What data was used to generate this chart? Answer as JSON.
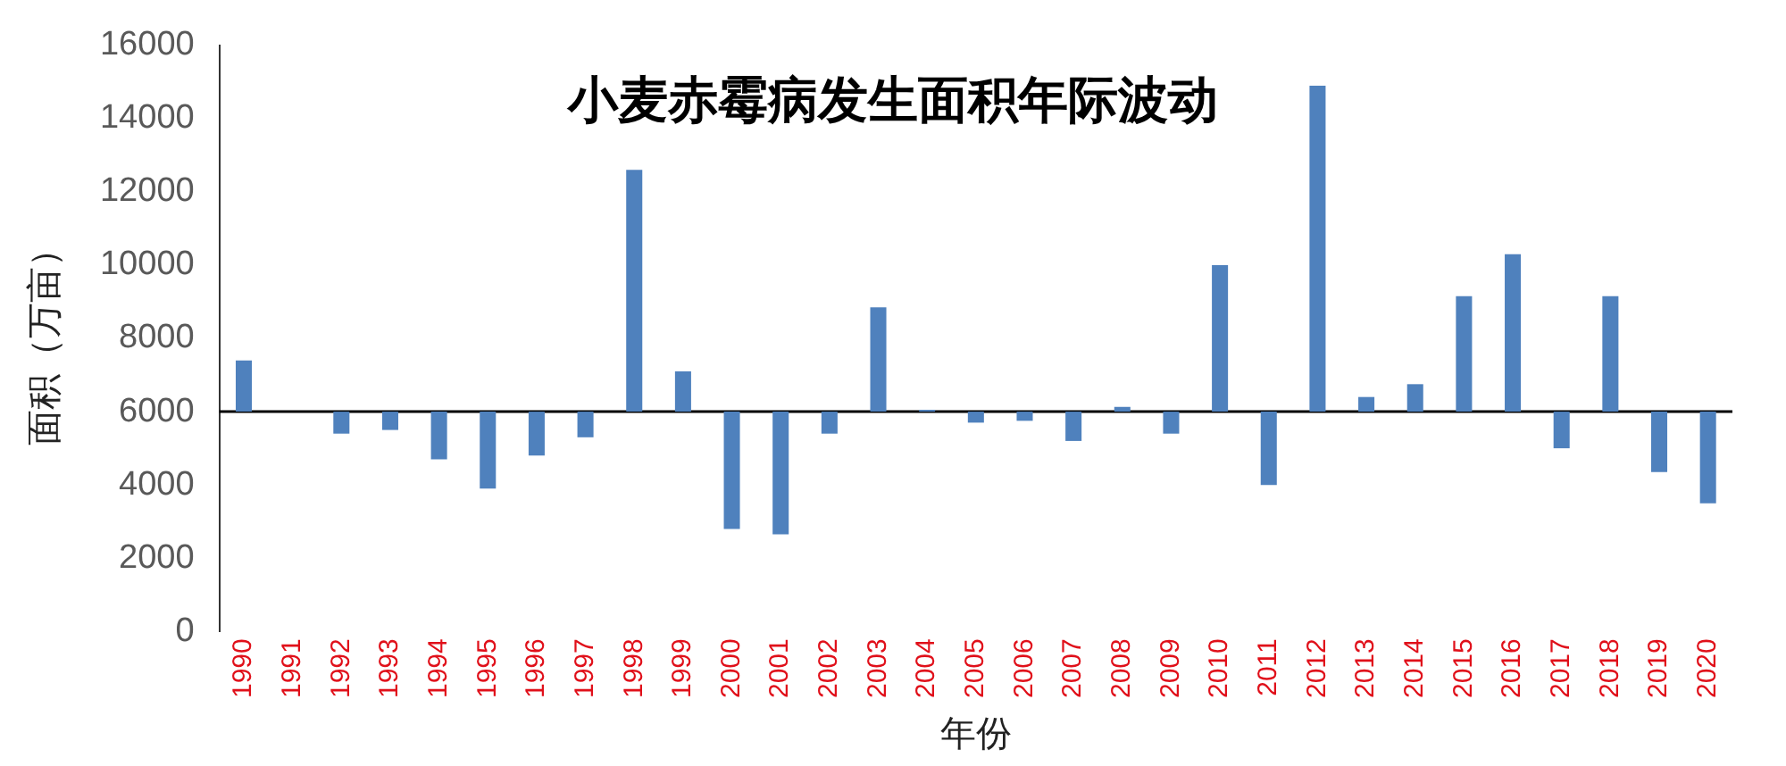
{
  "chart_data": {
    "type": "bar",
    "title": "小麦赤霉病发生面积年际波动",
    "xlabel": "年份",
    "ylabel": "面积（万亩）",
    "categories": [
      "1990",
      "1991",
      "1992",
      "1993",
      "1994",
      "1995",
      "1996",
      "1997",
      "1998",
      "1999",
      "2000",
      "2001",
      "2002",
      "2003",
      "2004",
      "2005",
      "2006",
      "2007",
      "2008",
      "2009",
      "2010",
      "2011",
      "2012",
      "2013",
      "2014",
      "2015",
      "2016",
      "2017",
      "2018",
      "2019",
      "2020"
    ],
    "base": [
      6000,
      null,
      6000,
      6000,
      6000,
      6000,
      6000,
      6000,
      6000,
      6000,
      6000,
      6000,
      6000,
      6000,
      6000,
      6000,
      6000,
      6000,
      6000,
      6000,
      6000,
      6000,
      6000,
      6000,
      6000,
      6000,
      6000,
      6000,
      6000,
      6000,
      6000
    ],
    "values": [
      1400,
      null,
      -600,
      -500,
      -1300,
      -2100,
      -1200,
      -700,
      6600,
      1100,
      -3200,
      -3350,
      -600,
      2850,
      50,
      -300,
      -250,
      -800,
      130,
      -600,
      4000,
      -2000,
      8900,
      400,
      750,
      3150,
      4300,
      -1000,
      3150,
      -1650,
      -2500
    ],
    "color": "#4f81bd",
    "ylim": [
      0,
      16000
    ],
    "yticks": [
      0,
      2000,
      4000,
      6000,
      8000,
      10000,
      12000,
      14000,
      16000
    ],
    "legend": false
  }
}
